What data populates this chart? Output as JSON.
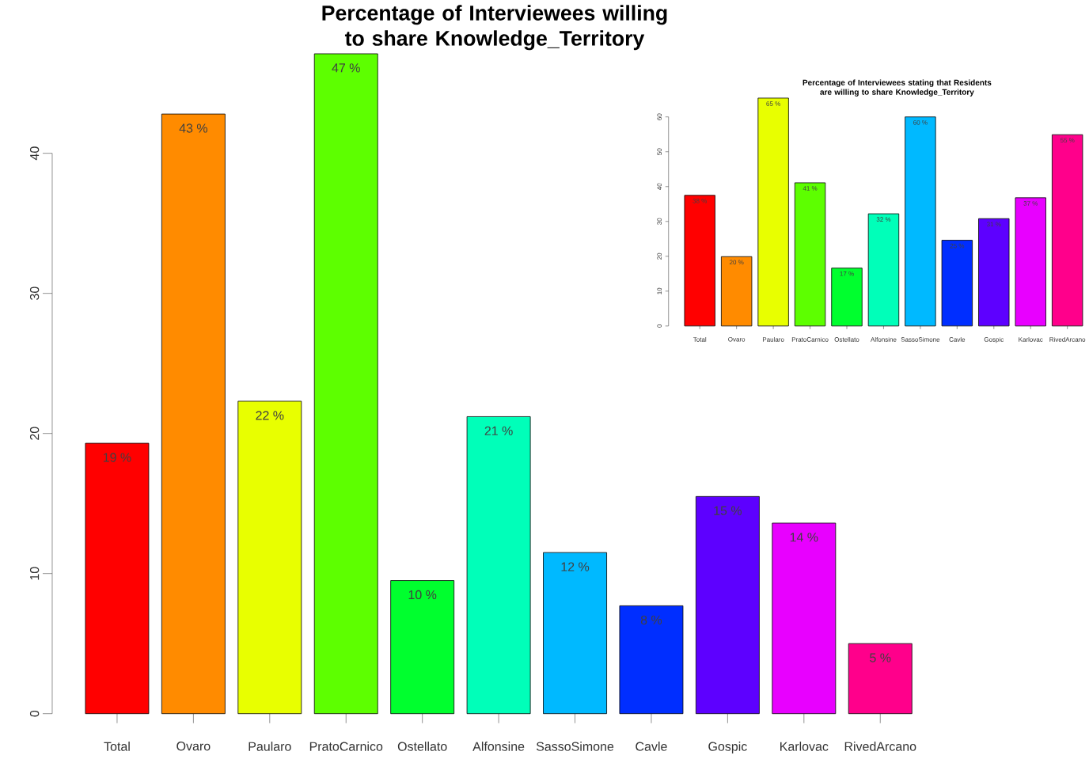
{
  "chart_data": [
    {
      "type": "bar",
      "title": "Percentage of Interviewees willing to share Knowledge_Territory",
      "categories": [
        "Total",
        "Ovaro",
        "Paularo",
        "PratoCarnico",
        "Ostellato",
        "Alfonsine",
        "SassoSimone",
        "Cavle",
        "Gospic",
        "Karlovac",
        "RivedArcano"
      ],
      "values": [
        19.3,
        42.8,
        22.3,
        47.1,
        9.5,
        21.2,
        11.5,
        7.7,
        15.5,
        13.6,
        5.0
      ],
      "value_labels": [
        "19 %",
        "43 %",
        "22 %",
        "47 %",
        "10 %",
        "21 %",
        "12 %",
        "8 %",
        "15 %",
        "14 %",
        "5 %"
      ],
      "colors": [
        "#ff0000",
        "#ff8b00",
        "#e8ff00",
        "#5dff00",
        "#00ff2e",
        "#00ffb9",
        "#00b9ff",
        "#002eff",
        "#5d00ff",
        "#e800ff",
        "#ff008b"
      ],
      "ylim": [
        0,
        47.1
      ],
      "yticks": [
        0,
        10,
        20,
        30,
        40
      ]
    },
    {
      "type": "bar",
      "title": "Percentage of Interviewees stating that Residents are willing to share Knowledge_Territory",
      "categories": [
        "Total",
        "Ovaro",
        "Paularo",
        "PratoCarnico",
        "Ostellato",
        "Alfonsine",
        "SassoSimone",
        "Cavle",
        "Gospic",
        "Karlovac",
        "RivedArcano"
      ],
      "values": [
        37.5,
        19.9,
        65.4,
        41.1,
        16.6,
        32.2,
        60.0,
        24.6,
        30.8,
        36.8,
        54.9
      ],
      "value_labels": [
        "38 %",
        "20 %",
        "65 %",
        "41 %",
        "17 %",
        "32 %",
        "60 %",
        "25 %",
        "31 %",
        "37 %",
        "55 %"
      ],
      "colors": [
        "#ff0000",
        "#ff8b00",
        "#e8ff00",
        "#5dff00",
        "#00ff2e",
        "#00ffb9",
        "#00b9ff",
        "#002eff",
        "#5d00ff",
        "#e800ff",
        "#ff008b"
      ],
      "ylim": [
        0,
        65.4
      ],
      "yticks": [
        0,
        10,
        20,
        30,
        40,
        50,
        60
      ]
    }
  ]
}
